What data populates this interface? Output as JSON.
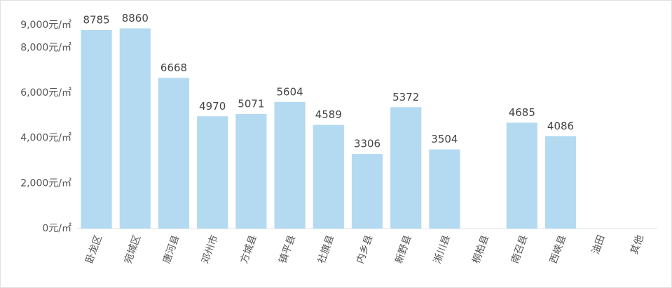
{
  "chart_data": {
    "type": "bar",
    "categories": [
      "卧龙区",
      "宛城区",
      "唐河县",
      "邓州市",
      "方城县",
      "镇平县",
      "社旗县",
      "内乡县",
      "新野县",
      "淅川县",
      "桐柏县",
      "南召县",
      "西峡县",
      "油田",
      "其他"
    ],
    "values": [
      8785,
      8860,
      6668,
      4970,
      5071,
      5604,
      4589,
      3306,
      5372,
      3504,
      null,
      4685,
      4086,
      null,
      null
    ],
    "color": "#b3daf0",
    "ylim": [
      0,
      9000
    ],
    "yticks": [
      {
        "value": 0,
        "label": "0元/㎡"
      },
      {
        "value": 2000,
        "label": "2,000元/㎡"
      },
      {
        "value": 4000,
        "label": "4,000元/㎡"
      },
      {
        "value": 6000,
        "label": "6,000元/㎡"
      },
      {
        "value": 8000,
        "label": "8,000元/㎡"
      },
      {
        "value": 9000,
        "label": "9,000元/㎡"
      }
    ],
    "grid": false
  }
}
